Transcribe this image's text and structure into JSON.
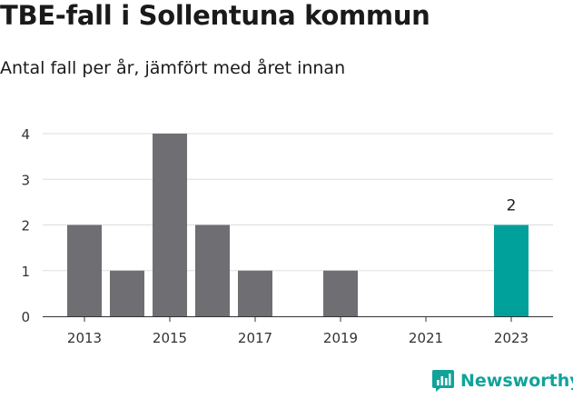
{
  "title": "TBE-fall i Sollentuna kommun",
  "subtitle": "Antal fall per år, jämfört med året innan",
  "brand": {
    "name": "Newsworthy",
    "icon": "newsworthy-logo-icon",
    "color": "#11a39a"
  },
  "colors": {
    "bar": "#6f6f73",
    "highlight": "#00a19a",
    "grid": "#dddddd",
    "axis": "#333333"
  },
  "chart_data": {
    "type": "bar",
    "categories": [
      "2013",
      "2014",
      "2015",
      "2016",
      "2017",
      "2018",
      "2019",
      "2020",
      "2021",
      "2022",
      "2023"
    ],
    "values": [
      2,
      1,
      4,
      2,
      1,
      0,
      1,
      0,
      0,
      0,
      2
    ],
    "xtick_labels": [
      "2013",
      "2015",
      "2017",
      "2019",
      "2021",
      "2023"
    ],
    "yticks": [
      0,
      1,
      2,
      3,
      4
    ],
    "ylim": [
      0,
      4
    ],
    "highlight_category": "2023",
    "data_labels": [
      {
        "category": "2023",
        "text": "2"
      }
    ],
    "grid": true,
    "legend": "none"
  }
}
